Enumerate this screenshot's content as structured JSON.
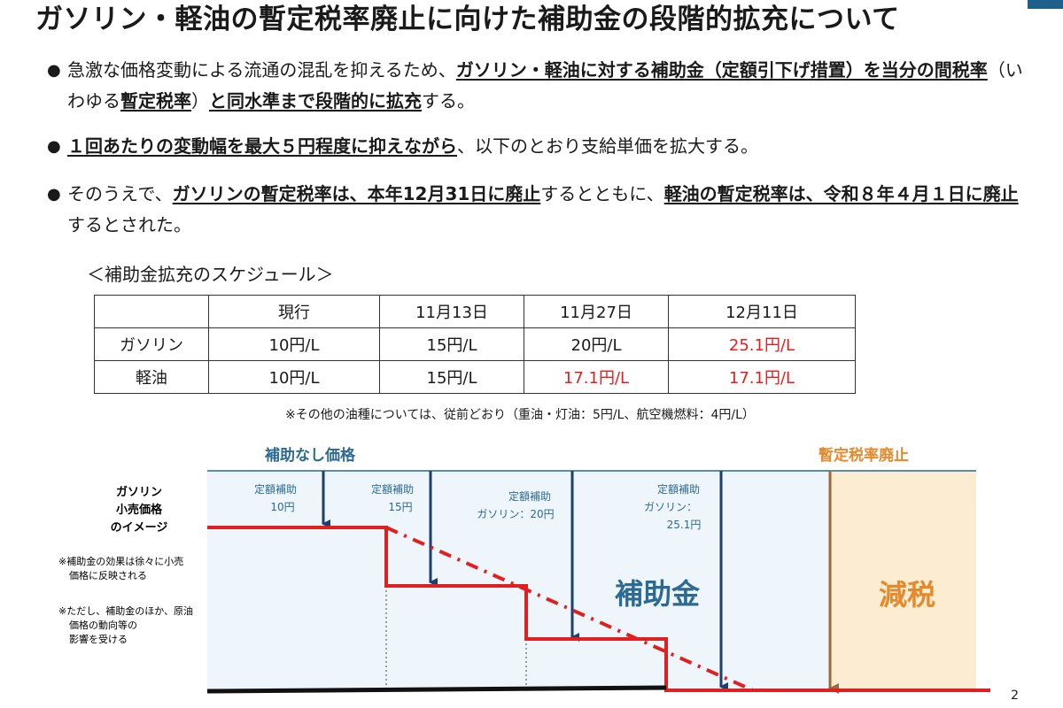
{
  "title": "ガソリン・軽油の暫定税率廃止に向けた補助金の段階的拡充について",
  "bullets": {
    "b1": {
      "p1": "急激な価格変動による流通の混乱を抑えるため、",
      "p2": "ガソリン・軽油に対する補助金（定額引下げ措置）を当分の間税率",
      "p3": "（いわゆる",
      "p4": "暫定税率",
      "p5": "）",
      "p6": "と同水準まで段階的に拡充",
      "p7": "する。"
    },
    "b2": {
      "p1": "１回あたりの変動幅を最大５円程度に抑えながら",
      "p2": "、以下のとおり支給単価を拡大する。"
    },
    "b3": {
      "p1": "そのうえで、",
      "p2": "ガソリンの暫定税率は、本年12月31日に廃止",
      "p3": "するとともに、",
      "p4": "軽油の暫定税率は、令和８年４月１日に廃止",
      "p5": "するとされた。"
    }
  },
  "schedule": {
    "title": "＜補助金拡充のスケジュール＞",
    "headers": [
      "",
      "現行",
      "11月13日",
      "11月27日",
      "12月11日"
    ],
    "rows": [
      {
        "label": "ガソリン",
        "cells": [
          "10円/L",
          "15円/L",
          "20円/L",
          "25.1円/L"
        ]
      },
      {
        "label": "軽油",
        "cells": [
          "10円/L",
          "15円/L",
          "17.1円/L",
          "17.1円/L"
        ]
      }
    ],
    "note": "※その他の油種については、従前どおり（重油・灯油：5円/L、航空機燃料：4円/L）"
  },
  "diagram": {
    "no_subsidy_label": "補助なし価格",
    "abolition_label": "暫定税率廃止",
    "left_label": [
      "ガソリン",
      "小売価格",
      "のイメージ"
    ],
    "note1": [
      "※補助金の効果は徐々に小売",
      "価格に反映される"
    ],
    "note2": [
      "※ただし、補助金のほか、原油",
      "価格の動向等の",
      "影響を受ける"
    ],
    "arrow1": [
      "定額補助",
      "10円"
    ],
    "arrow2": [
      "定額補助",
      "15円"
    ],
    "arrow3": [
      "定額補助",
      "ガソリン：20円"
    ],
    "arrow4": [
      "定額補助",
      "ガソリン：",
      "25.1円"
    ],
    "subsidy_area_label": "補助金",
    "tax_cut_label": "減税"
  },
  "colors": {
    "red": "#e02020",
    "navy": "#1b3f6e",
    "light_blue_bg": "#eef5fb",
    "tax_cut_bg": "#fbecd2",
    "orange": "#e48a2c",
    "blue_label": "#2d6a93"
  },
  "page_number": "2"
}
